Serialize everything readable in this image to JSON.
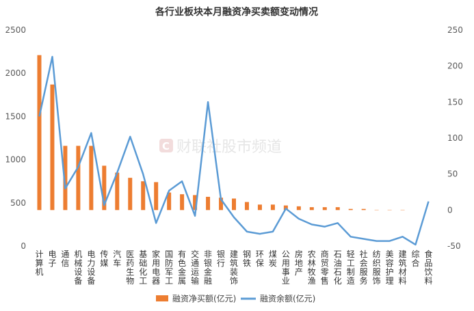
{
  "chart_data": {
    "type": "bar",
    "title": "各行业板块本月融资净买卖额变动情况",
    "categories": [
      "计算机",
      "电子",
      "通信",
      "机械设备",
      "电力设备",
      "传媒",
      "汽车",
      "医药生物",
      "基础化工",
      "家用电器",
      "国防军工",
      "有色金属",
      "交通运输",
      "非银金融",
      "银行",
      "建筑装饰",
      "钢铁",
      "环保",
      "煤炭",
      "公用事业",
      "房地产",
      "农林牧渔",
      "商贸零售",
      "石油石化",
      "轻工制造",
      "社会服务",
      "纺织服饰",
      "美容护理",
      "建筑材料",
      "综合",
      "食品饮料"
    ],
    "series": [
      {
        "name": "融资净买额(亿元)",
        "type": "bar",
        "axis": "left",
        "color": "#ED7D31",
        "values": [
          2210,
          1870,
          1160,
          1160,
          1160,
          930,
          850,
          790,
          750,
          740,
          620,
          600,
          590,
          570,
          560,
          550,
          510,
          480,
          480,
          470,
          460,
          450,
          450,
          450,
          430,
          430,
          420,
          420,
          420,
          410,
          410
        ]
      },
      {
        "name": "融资余额(亿元)",
        "type": "line",
        "axis": "right",
        "color": "#5B9BD5",
        "values": [
          130,
          213,
          30,
          60,
          107,
          7,
          52,
          102,
          50,
          -18,
          27,
          40,
          -8,
          150,
          15,
          -10,
          -30,
          -33,
          -30,
          2,
          -12,
          -20,
          -23,
          -18,
          -37,
          -40,
          -43,
          -43,
          -37,
          -48,
          12
        ]
      }
    ],
    "y_left": {
      "min": 0,
      "max": 2500,
      "ticks": [
        0,
        500,
        1000,
        1500,
        2000,
        2500
      ]
    },
    "y_right": {
      "min": -50,
      "max": 250,
      "ticks": [
        -50,
        0,
        50,
        100,
        150,
        200,
        250
      ]
    },
    "grid": false,
    "legend": "bottom",
    "watermark": "财联社股市频道"
  }
}
